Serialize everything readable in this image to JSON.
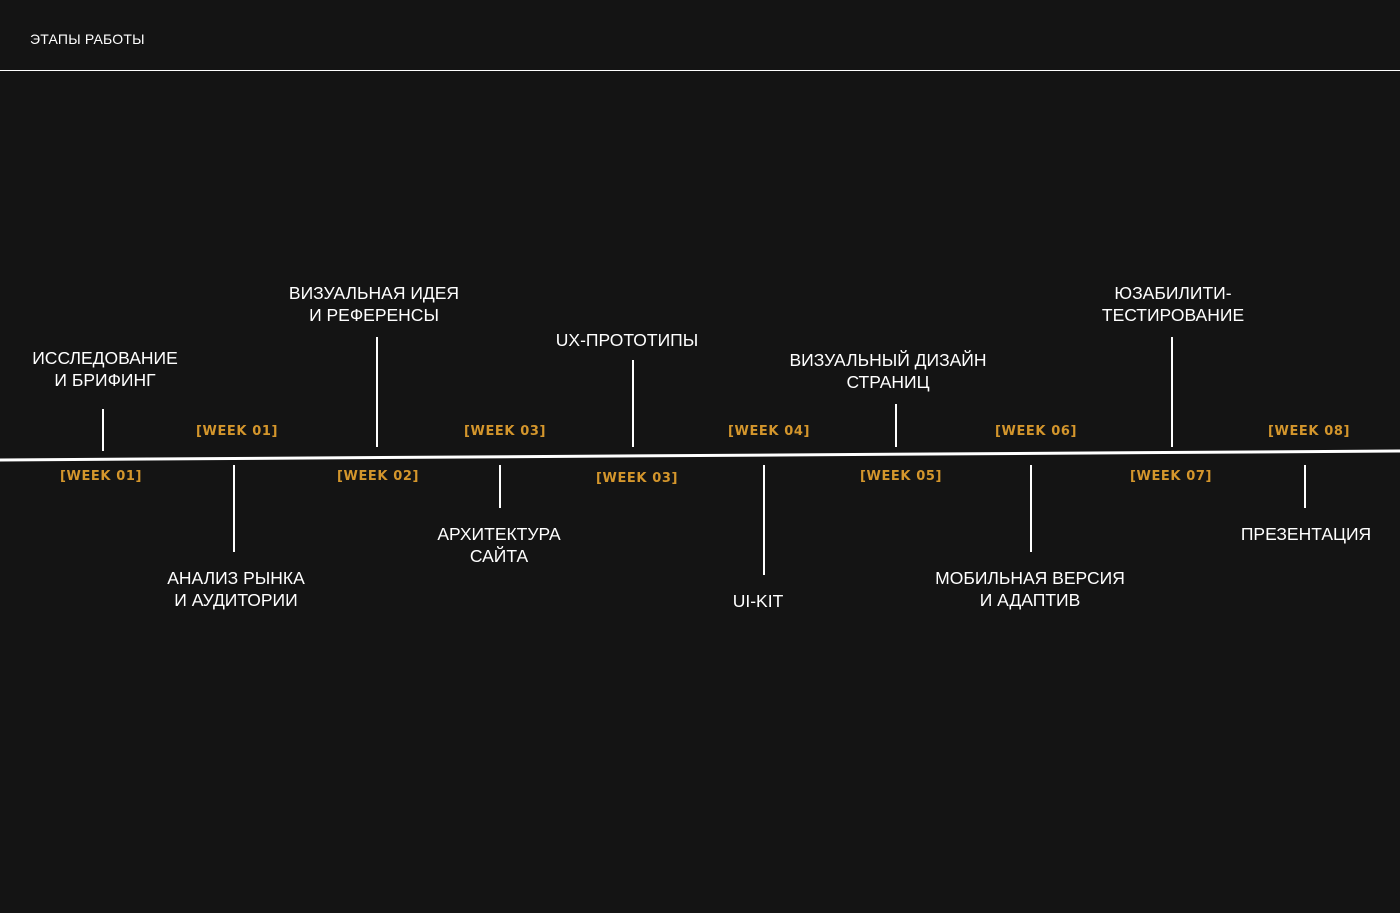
{
  "page": {
    "title": "ЭТАПЫ РАБОТЫ"
  },
  "colors": {
    "background": "#141414",
    "line": "#ffffff",
    "accent": "#d4962c",
    "text": "#ffffff"
  },
  "stages": [
    {
      "text": "ИССЛЕДОВАНИЕ\nИ БРИФИНГ",
      "position": "above"
    },
    {
      "text": "АНАЛИЗ РЫНКА\nИ АУДИТОРИИ",
      "position": "below"
    },
    {
      "text": "ВИЗУАЛЬНАЯ ИДЕЯ\nИ РЕФЕРЕНСЫ",
      "position": "above"
    },
    {
      "text": "АРХИТЕКТУРА\nСАЙТА",
      "position": "below"
    },
    {
      "text": "UX-ПРОТОТИПЫ",
      "position": "above"
    },
    {
      "text": "UI-KIT",
      "position": "below"
    },
    {
      "text": "ВИЗУАЛЬНЫЙ ДИЗАЙН\nСТРАНИЦ",
      "position": "above"
    },
    {
      "text": "МОБИЛЬНАЯ ВЕРСИЯ\nИ АДАПТИВ",
      "position": "below"
    },
    {
      "text": "ЮЗАБИЛИТИ-\nТЕСТИРОВАНИЕ",
      "position": "above"
    },
    {
      "text": "ПРЕЗЕНТАЦИЯ",
      "position": "below"
    }
  ],
  "weeks": {
    "above_line": [
      "[WEEK 01]",
      "[WEEK 03]",
      "[WEEK 04]",
      "[WEEK 06]",
      "[WEEK 08]"
    ],
    "below_line": [
      "[WEEK 01]",
      "[WEEK 02]",
      "[WEEK 03]",
      "[WEEK 05]",
      "[WEEK 07]"
    ]
  }
}
